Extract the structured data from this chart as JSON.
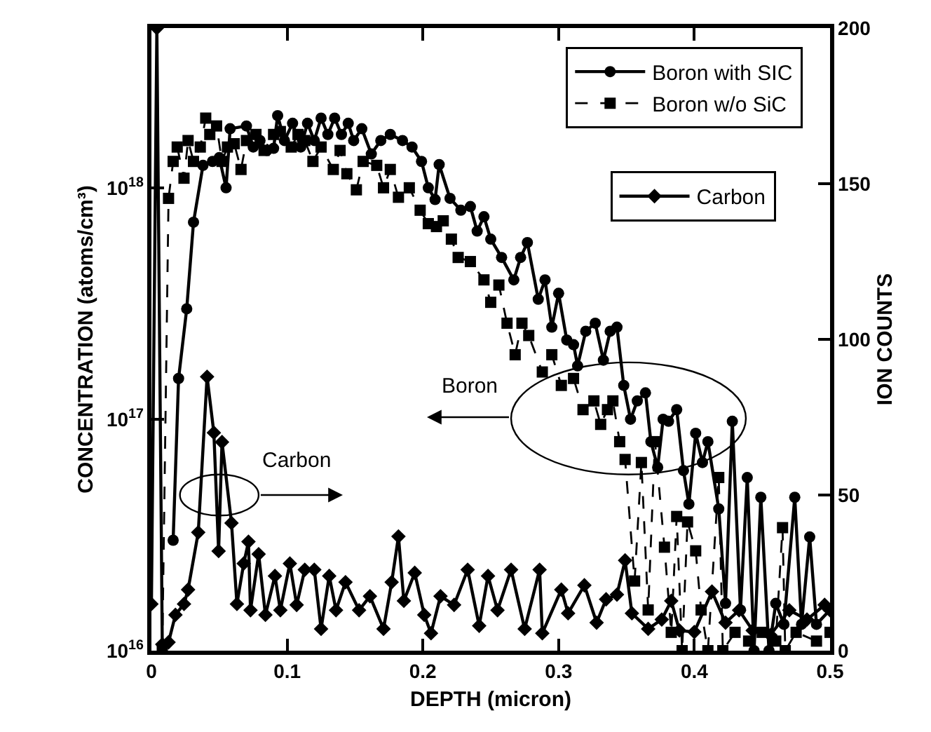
{
  "chart_data": {
    "type": "line",
    "xlabel": "DEPTH (micron)",
    "ylabel": "CONCENTRATION (atoms/cm³)",
    "y2label": "ION COUNTS",
    "xlim": [
      0,
      0.5
    ],
    "xticks": [
      0,
      0.1,
      0.2,
      0.3,
      0.4,
      0.5
    ],
    "ylim": [
      1e+16,
      4.9e+18
    ],
    "yticks": [
      {
        "value": 1e+16,
        "label": "10$^{16}$"
      },
      {
        "value": 1e+17,
        "label": "10$^{17}$"
      },
      {
        "value": 1e+18,
        "label": "10$^{18}$"
      }
    ],
    "y2lim": [
      0,
      200
    ],
    "y2ticks": [
      0,
      50,
      100,
      150,
      200
    ],
    "log": "y",
    "legend": "top right",
    "annotations": [
      "Carbon",
      "Boron"
    ],
    "series": [
      {
        "name": "Boron with SIC",
        "color": "#000000",
        "line_style": "solid",
        "marker": "circle",
        "x": [
          0.016,
          0.02,
          0.026,
          0.031,
          0.038,
          0.045,
          0.05,
          0.055,
          0.058,
          0.07,
          0.075,
          0.08,
          0.085,
          0.09,
          0.093,
          0.098,
          0.104,
          0.11,
          0.115,
          0.12,
          0.125,
          0.13,
          0.135,
          0.14,
          0.145,
          0.149,
          0.155,
          0.162,
          0.169,
          0.176,
          0.185,
          0.192,
          0.199,
          0.204,
          0.209,
          0.212,
          0.22,
          0.228,
          0.235,
          0.24,
          0.245,
          0.25,
          0.258,
          0.267,
          0.272,
          0.277,
          0.285,
          0.29,
          0.295,
          0.3,
          0.306,
          0.311,
          0.314,
          0.32,
          0.327,
          0.333,
          0.338,
          0.343,
          0.348,
          0.353,
          0.358,
          0.364,
          0.368,
          0.373,
          0.377,
          0.381,
          0.387,
          0.392,
          0.396,
          0.401,
          0.406,
          0.41,
          0.418,
          0.423,
          0.428,
          0.434,
          0.439,
          0.444,
          0.449,
          0.455,
          0.46,
          0.466,
          0.474,
          0.479,
          0.485,
          0.49,
          0.5
        ],
        "values": [
          3e+16,
          1.5e+17,
          3e+17,
          7.1e+17,
          1.25e+18,
          1.3e+18,
          1.35e+18,
          1e+18,
          1.8e+18,
          1.85e+18,
          1.5e+18,
          1.6e+18,
          1.45e+18,
          1.48e+18,
          2.05e+18,
          1.6e+18,
          1.9e+18,
          1.5e+18,
          1.9e+18,
          1.6e+18,
          2e+18,
          1.7e+18,
          2e+18,
          1.7e+18,
          1.9e+18,
          1.6e+18,
          1.8e+18,
          1.4e+18,
          1.6e+18,
          1.7e+18,
          1.6e+18,
          1.5e+18,
          1.3e+18,
          1e+18,
          8.9e+17,
          1.26e+18,
          9e+17,
          8e+17,
          8.3e+17,
          6.5e+17,
          7.5e+17,
          6e+17,
          5e+17,
          4e+17,
          5e+17,
          5.8e+17,
          3.3e+17,
          4e+17,
          2.5e+17,
          3.5e+17,
          2.2e+17,
          2.1e+17,
          1.7e+17,
          2.4e+17,
          2.6e+17,
          1.8e+17,
          2.4e+17,
          2.5e+17,
          1.4e+17,
          1e+17,
          1.2e+17,
          1.3e+17,
          8e+16,
          6.2e+16,
          1e+17,
          9.8e+16,
          1.1e+17,
          6e+16,
          4.3e+16,
          8.7e+16,
          6.5e+16,
          8e+16,
          4.1e+16,
          1.6e+16,
          9.8e+16,
          1.5e+16,
          5.6e+16,
          1e+16,
          4.6e+16,
          1e+16,
          1.6e+16,
          1.3e+16,
          4.6e+16,
          1.3e+16,
          3.1e+16,
          1.3e+16,
          1.5e+16
        ]
      },
      {
        "name": "Boron w/o SiC",
        "color": "#000000",
        "line_style": "dashed",
        "marker": "square",
        "x": [
          0.008,
          0.0126,
          0.016,
          0.019,
          0.024,
          0.027,
          0.031,
          0.036,
          0.04,
          0.043,
          0.048,
          0.052,
          0.056,
          0.061,
          0.066,
          0.07,
          0.077,
          0.083,
          0.09,
          0.095,
          0.103,
          0.108,
          0.113,
          0.119,
          0.125,
          0.134,
          0.139,
          0.144,
          0.151,
          0.156,
          0.166,
          0.171,
          0.176,
          0.182,
          0.19,
          0.198,
          0.204,
          0.21,
          0.215,
          0.221,
          0.226,
          0.235,
          0.245,
          0.25,
          0.256,
          0.262,
          0.268,
          0.273,
          0.278,
          0.288,
          0.295,
          0.302,
          0.311,
          0.318,
          0.326,
          0.331,
          0.336,
          0.34,
          0.345,
          0.349,
          0.356,
          0.361,
          0.366,
          0.371,
          0.378,
          0.383,
          0.387,
          0.391,
          0.395,
          0.401,
          0.405,
          0.41,
          0.418,
          0.421,
          0.43,
          0.44,
          0.45,
          0.46,
          0.465,
          0.467,
          0.475,
          0.49,
          0.5
        ],
        "values": [
          1e+16,
          9e+17,
          1.3e+18,
          1.5e+18,
          1.1e+18,
          1.6e+18,
          1.3e+18,
          1.5e+18,
          2e+18,
          1.7e+18,
          1.85e+18,
          1.3e+18,
          1.5e+18,
          1.55e+18,
          1.2e+18,
          1.6e+18,
          1.7e+18,
          1.45e+18,
          1.7e+18,
          1.75e+18,
          1.5e+18,
          1.7e+18,
          1.6e+18,
          1.3e+18,
          1.5e+18,
          1.2e+18,
          1.45e+18,
          1.15e+18,
          9.8e+17,
          1.3e+18,
          1.25e+18,
          1e+18,
          1.2e+18,
          9.1e+17,
          1e+18,
          8e+17,
          7e+17,
          6.8e+17,
          7.2e+17,
          6e+17,
          5e+17,
          4.8e+17,
          4e+17,
          3.2e+17,
          3.8e+17,
          2.6e+17,
          1.9e+17,
          2.6e+17,
          2.3e+17,
          1.6e+17,
          1.9e+17,
          1.4e+17,
          1.5e+17,
          1.1e+17,
          1.2e+17,
          9.5e+16,
          1.1e+17,
          1.2e+17,
          8e+16,
          6.7e+16,
          2e+16,
          6.5e+16,
          1.5e+16,
          8e+16,
          2.8e+16,
          1.2e+16,
          3.8e+16,
          1e+16,
          3.6e+16,
          2.7e+16,
          1.5e+16,
          1e+16,
          5.6e+16,
          1e+16,
          1.2e+16,
          1.1e+16,
          1.2e+16,
          1.1e+16,
          3.4e+16,
          1e+16,
          1.2e+16,
          1.1e+16,
          1.2e+16
        ]
      },
      {
        "name": "Carbon",
        "color": "#000000",
        "line_style": "solid",
        "marker": "diamond",
        "axis": "y2",
        "x": [
          0,
          0.004,
          0.008,
          0.0126,
          0.0177,
          0.024,
          0.027,
          0.0345,
          0.041,
          0.046,
          0.0495,
          0.052,
          0.059,
          0.063,
          0.068,
          0.0715,
          0.073,
          0.079,
          0.084,
          0.091,
          0.095,
          0.102,
          0.107,
          0.113,
          0.12,
          0.125,
          0.131,
          0.136,
          0.143,
          0.153,
          0.161,
          0.171,
          0.177,
          0.182,
          0.186,
          0.194,
          0.201,
          0.206,
          0.213,
          0.223,
          0.233,
          0.2415,
          0.248,
          0.255,
          0.265,
          0.275,
          0.286,
          0.288,
          0.302,
          0.307,
          0.319,
          0.328,
          0.335,
          0.343,
          0.349,
          0.354,
          0.366,
          0.376,
          0.383,
          0.389,
          0.4,
          0.413,
          0.423,
          0.433,
          0.443,
          0.456,
          0.47,
          0.483,
          0.496,
          0.5
        ],
        "values": [
          15,
          200,
          2,
          2.7,
          11.5,
          15,
          19.6,
          38,
          88,
          70,
          32,
          67,
          41,
          15,
          28,
          35,
          13,
          31,
          11.5,
          24,
          13,
          28,
          14.7,
          26,
          26,
          7,
          24,
          13,
          22,
          13,
          17.5,
          7,
          22,
          36.7,
          16,
          25,
          11.5,
          5.6,
          17.5,
          14.7,
          26,
          8,
          24,
          13,
          26,
          7,
          26,
          5.6,
          19.6,
          12,
          21,
          9,
          16.5,
          18,
          29,
          12,
          7,
          10,
          16,
          6.5,
          6,
          19,
          9,
          13,
          6.5,
          5,
          13,
          10,
          14.7,
          13
        ]
      }
    ]
  }
}
